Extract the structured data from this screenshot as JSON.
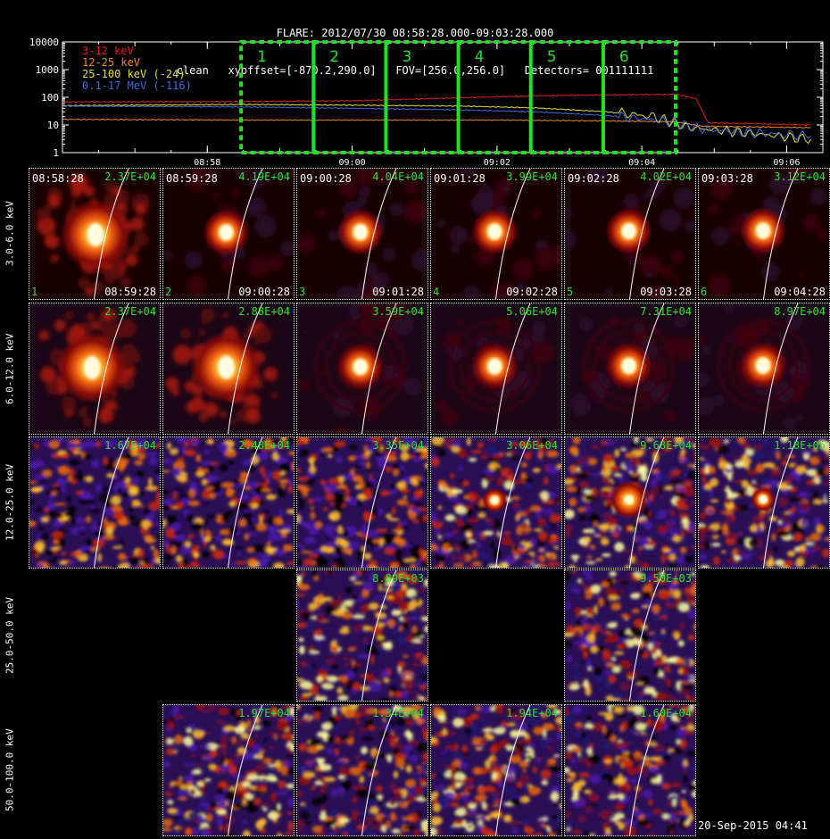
{
  "header": {
    "line1": "FLARE: 2012/07/30 08:58:28.000-09:03:28.000",
    "line2": "clean   xyoffset=[-870.2,290.0]   FOV=[256.0,256.0]   Detectors= 001111111"
  },
  "footer": "20-Sep-2015 04:41",
  "chart_data": [
    {
      "type": "line",
      "yscale": "log",
      "ylim": [
        1,
        10000
      ],
      "yticks": [
        "1",
        "10",
        "100",
        "1000",
        "10000"
      ],
      "xticks": [
        "08:58",
        "09:00",
        "09:02",
        "09:04",
        "09:06"
      ],
      "legend": "top-left",
      "series": [
        {
          "name": "3-12 keV",
          "color": "#e61c1c",
          "points": [
            [
              "08:56:00",
              68
            ],
            [
              "08:58:28",
              70
            ],
            [
              "09:00:00",
              75
            ],
            [
              "09:01:00",
              88
            ],
            [
              "09:02:00",
              105
            ],
            [
              "09:03:00",
              118
            ],
            [
              "09:04:00",
              125
            ],
            [
              "09:04:28",
              128
            ],
            [
              "09:04:45",
              90
            ],
            [
              "09:04:55",
              12
            ],
            [
              "09:06:20",
              10
            ]
          ]
        },
        {
          "name": "12-25 keV",
          "color": "#f08a20",
          "points": [
            [
              "08:56:00",
              16
            ],
            [
              "08:58:28",
              15
            ],
            [
              "09:00:00",
              15
            ],
            [
              "09:02:00",
              15
            ],
            [
              "09:03:30",
              14
            ],
            [
              "09:04:28",
              13
            ],
            [
              "09:04:50",
              9
            ],
            [
              "09:06:20",
              8
            ]
          ]
        },
        {
          "name": "25-100 keV (-24)",
          "color": "#e8e020",
          "points": [
            [
              "08:56:00",
              50
            ],
            [
              "08:58:28",
              55
            ],
            [
              "09:00:00",
              52
            ],
            [
              "09:01:30",
              48
            ],
            [
              "09:02:30",
              42
            ],
            [
              "09:03:30",
              30
            ],
            [
              "09:04:10",
              20
            ],
            [
              "09:04:40",
              8
            ],
            [
              "09:05:30",
              5
            ],
            [
              "09:06:20",
              3
            ]
          ]
        },
        {
          "name": "0.1-17 MeV (-116)",
          "color": "#3f6ae0",
          "points": [
            [
              "08:56:00",
              48
            ],
            [
              "08:58:28",
              45
            ],
            [
              "09:00:00",
              40
            ],
            [
              "09:01:30",
              35
            ],
            [
              "09:02:30",
              30
            ],
            [
              "09:03:30",
              22
            ],
            [
              "09:04:20",
              14
            ],
            [
              "09:04:50",
              7
            ],
            [
              "09:05:40",
              5
            ],
            [
              "09:06:20",
              4
            ]
          ]
        }
      ],
      "intervals": [
        {
          "label": "1",
          "start": "08:58:28",
          "end": "08:59:28"
        },
        {
          "label": "2",
          "start": "08:59:28",
          "end": "09:00:28"
        },
        {
          "label": "3",
          "start": "09:00:28",
          "end": "09:01:28"
        },
        {
          "label": "4",
          "start": "09:01:28",
          "end": "09:02:28"
        },
        {
          "label": "5",
          "start": "09:02:28",
          "end": "09:03:28"
        },
        {
          "label": "6",
          "start": "09:03:28",
          "end": "09:04:28"
        }
      ]
    },
    {
      "type": "heatmap",
      "energy_bands": [
        "3.0-6.0 keV",
        "6.0-12.0 keV",
        "12.0-25.0 keV",
        "25.0-50.0 keV",
        "50.0-100.0 keV"
      ],
      "images": [
        {
          "band": 0,
          "interval": 0,
          "start_time": "08:58:28",
          "end_time": "08:59:28",
          "index": "1",
          "peak": "2.37E+04"
        },
        {
          "band": 0,
          "interval": 1,
          "start_time": "08:59:28",
          "end_time": "09:00:28",
          "index": "2",
          "peak": "4.19E+04"
        },
        {
          "band": 0,
          "interval": 2,
          "start_time": "09:00:28",
          "end_time": "09:01:28",
          "index": "3",
          "peak": "4.04E+04"
        },
        {
          "band": 0,
          "interval": 3,
          "start_time": "09:01:28",
          "end_time": "09:02:28",
          "index": "4",
          "peak": "3.99E+04"
        },
        {
          "band": 0,
          "interval": 4,
          "start_time": "09:02:28",
          "end_time": "09:03:28",
          "index": "5",
          "peak": "4.02E+04"
        },
        {
          "band": 0,
          "interval": 5,
          "start_time": "09:03:28",
          "end_time": "09:04:28",
          "index": "6",
          "peak": "3.12E+04"
        },
        {
          "band": 1,
          "interval": 0,
          "peak": "2.37E+04"
        },
        {
          "band": 1,
          "interval": 1,
          "peak": "2.88E+04"
        },
        {
          "band": 1,
          "interval": 2,
          "peak": "3.59E+04"
        },
        {
          "band": 1,
          "interval": 3,
          "peak": "5.06E+04"
        },
        {
          "band": 1,
          "interval": 4,
          "peak": "7.31E+04"
        },
        {
          "band": 1,
          "interval": 5,
          "peak": "8.97E+04"
        },
        {
          "band": 2,
          "interval": 0,
          "peak": "1.67E+04"
        },
        {
          "band": 2,
          "interval": 1,
          "peak": "2.48E+04"
        },
        {
          "band": 2,
          "interval": 2,
          "peak": "3.35E+04"
        },
        {
          "band": 2,
          "interval": 3,
          "peak": "3.06E+04"
        },
        {
          "band": 2,
          "interval": 4,
          "peak": "9.68E+04"
        },
        {
          "band": 2,
          "interval": 5,
          "peak": "1.18E+05"
        },
        {
          "band": 3,
          "interval": 2,
          "peak": "8.89E+03"
        },
        {
          "band": 3,
          "interval": 4,
          "peak": "9.50E+03"
        },
        {
          "band": 4,
          "interval": 1,
          "peak": "1.97E+04"
        },
        {
          "band": 4,
          "interval": 2,
          "peak": "1.34E+04"
        },
        {
          "band": 4,
          "interval": 3,
          "peak": "1.94E+04"
        },
        {
          "band": 4,
          "interval": 4,
          "peak": "1.60E+04"
        }
      ]
    }
  ]
}
